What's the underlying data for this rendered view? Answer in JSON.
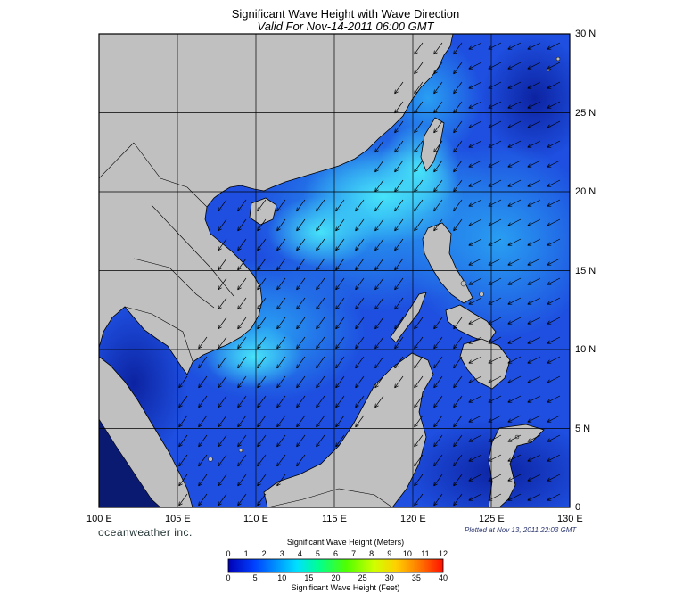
{
  "title": "Significant Wave Height with Wave Direction",
  "subtitle": "Valid For Nov-14-2011 06:00 GMT",
  "lon_labels": [
    "100 E",
    "105 E",
    "110 E",
    "115 E",
    "120 E",
    "125 E",
    "130 E"
  ],
  "lat_labels": [
    "30 N",
    "25 N",
    "20 N",
    "15 N",
    "10 N",
    "5 N",
    "0"
  ],
  "brand": "oceanweather inc.",
  "plotted": "Plotted at Nov 13, 2011 22:03 GMT",
  "colorbar": {
    "meters_title": "Significant Wave Height (Meters)",
    "feet_title": "Significant Wave Height (Feet)",
    "meters_ticks": [
      "0",
      "1",
      "2",
      "3",
      "4",
      "5",
      "6",
      "7",
      "8",
      "9",
      "10",
      "11",
      "12"
    ],
    "feet_ticks": [
      "0",
      "5",
      "10",
      "15",
      "20",
      "25",
      "30",
      "35",
      "40"
    ],
    "colors": [
      "#0000a0",
      "#0030ff",
      "#0090ff",
      "#00e0ff",
      "#00ff80",
      "#80ff00",
      "#ffff00",
      "#ff9000",
      "#ff2000"
    ]
  },
  "colors": {
    "land": "#c0c0c0",
    "deep_blue": "#0a1f9c",
    "blue": "#1e4fe0",
    "mid_blue": "#1e7ff0",
    "cyan": "#30c8f8",
    "light_cyan": "#48e0f8"
  },
  "wind_direction": "northeast monsoon — arrows point toward southwest"
}
